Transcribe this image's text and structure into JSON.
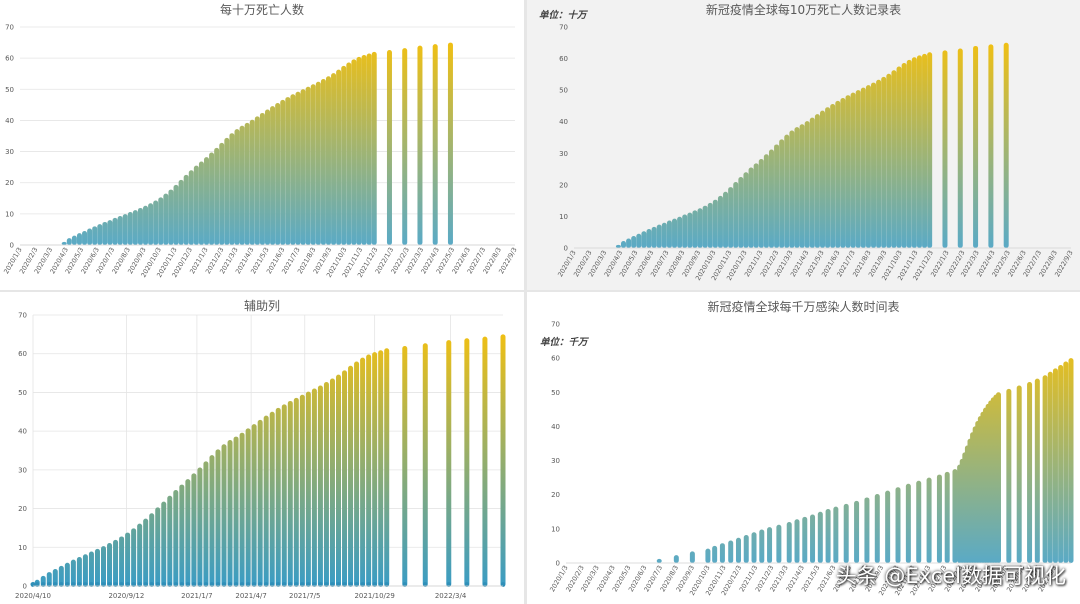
{
  "chart_data": [
    {
      "id": "c1",
      "type": "bar",
      "title": "每十万死亡人数",
      "unit": "",
      "ylim": [
        0,
        70
      ],
      "yticks": [
        0,
        10,
        20,
        30,
        40,
        50,
        60,
        70
      ],
      "gridlines": true,
      "legend": "none",
      "xticklabels": [
        "2020/1/3",
        "2020/2/3",
        "2020/3/3",
        "2020/4/3",
        "2020/5/3",
        "2020/6/3",
        "2020/7/3",
        "2020/8/3",
        "2020/9/3",
        "2020/10/3",
        "2020/11/3",
        "2020/12/3",
        "2021/1/3",
        "2021/2/3",
        "2021/3/3",
        "2021/4/3",
        "2021/5/3",
        "2021/6/3",
        "2021/7/3",
        "2021/8/3",
        "2021/9/3",
        "2021/10/3",
        "2021/11/3",
        "2021/12/3",
        "2022/1/3",
        "2022/2/3",
        "2022/3/3",
        "2022/4/3",
        "2022/5/3",
        "2022/6/3",
        "2022/7/3",
        "2022/8/3",
        "2022/9/3"
      ],
      "x_days": [
        0,
        31,
        60,
        91,
        121,
        152,
        182,
        213,
        244,
        274,
        305,
        335,
        366,
        397,
        425,
        456,
        486,
        517,
        547,
        578,
        609,
        639,
        670,
        700,
        731,
        762,
        790,
        821,
        851,
        882,
        912,
        943,
        974
      ],
      "x_end_days": 974,
      "series_points": [
        [
          0,
          0
        ],
        [
          31,
          0
        ],
        [
          60,
          0
        ],
        [
          87,
          1.0
        ],
        [
          97,
          2.2
        ],
        [
          107,
          3.0
        ],
        [
          117,
          3.8
        ],
        [
          127,
          4.5
        ],
        [
          137,
          5.3
        ],
        [
          147,
          6.0
        ],
        [
          157,
          6.7
        ],
        [
          167,
          7.4
        ],
        [
          177,
          8.0
        ],
        [
          187,
          8.7
        ],
        [
          197,
          9.3
        ],
        [
          207,
          9.9
        ],
        [
          217,
          10.6
        ],
        [
          227,
          11.2
        ],
        [
          237,
          11.9
        ],
        [
          247,
          12.6
        ],
        [
          257,
          13.4
        ],
        [
          267,
          14.3
        ],
        [
          277,
          15.3
        ],
        [
          287,
          16.5
        ],
        [
          297,
          17.8
        ],
        [
          307,
          19.3
        ],
        [
          317,
          20.9
        ],
        [
          327,
          22.5
        ],
        [
          337,
          24.0
        ],
        [
          347,
          25.5
        ],
        [
          357,
          26.8
        ],
        [
          367,
          28.2
        ],
        [
          377,
          29.7
        ],
        [
          387,
          31.2
        ],
        [
          397,
          32.8
        ],
        [
          407,
          34.4
        ],
        [
          417,
          35.9
        ],
        [
          427,
          37.2
        ],
        [
          437,
          38.3
        ],
        [
          447,
          39.2
        ],
        [
          457,
          40.2
        ],
        [
          467,
          41.3
        ],
        [
          477,
          42.4
        ],
        [
          487,
          43.5
        ],
        [
          497,
          44.6
        ],
        [
          507,
          45.6
        ],
        [
          517,
          46.6
        ],
        [
          527,
          47.5
        ],
        [
          537,
          48.4
        ],
        [
          547,
          49.2
        ],
        [
          557,
          50.0
        ],
        [
          567,
          50.8
        ],
        [
          577,
          51.6
        ],
        [
          587,
          52.4
        ],
        [
          597,
          53.3
        ],
        [
          607,
          54.2
        ],
        [
          617,
          55.2
        ],
        [
          627,
          56.3
        ],
        [
          637,
          57.5
        ],
        [
          647,
          58.6
        ],
        [
          657,
          59.6
        ],
        [
          667,
          60.4
        ],
        [
          677,
          61.0
        ],
        [
          687,
          61.5
        ],
        [
          697,
          62.0
        ],
        [
          727,
          62.6
        ],
        [
          757,
          63.2
        ],
        [
          787,
          64.0
        ],
        [
          817,
          64.5
        ],
        [
          847,
          65.0
        ]
      ],
      "colors": {
        "bottom": "#5aaac6",
        "top": "#f2c011"
      }
    },
    {
      "id": "c2",
      "type": "bar",
      "title": "新冠疫情全球每10万死亡人数记录表",
      "unit": "单位：十万",
      "ylim": [
        0,
        70
      ],
      "yticks": [
        0,
        10,
        20,
        30,
        40,
        50,
        60,
        70
      ],
      "gridlines": false,
      "legend": "none",
      "xticklabels": [
        "2020/1/3",
        "2020/2/3",
        "2020/3/3",
        "2020/4/3",
        "2020/5/3",
        "2020/6/3",
        "2020/7/3",
        "2020/8/3",
        "2020/9/3",
        "2020/10/3",
        "2020/11/3",
        "2020/12/3",
        "2021/1/3",
        "2021/2/3",
        "2021/3/3",
        "2021/4/3",
        "2021/5/3",
        "2021/6/3",
        "2021/7/3",
        "2021/8/3",
        "2021/9/3",
        "2021/10/3",
        "2021/11/3",
        "2021/12/3",
        "2022/1/3",
        "2022/2/3",
        "2022/3/3",
        "2022/4/3",
        "2022/5/3",
        "2022/6/3",
        "2022/7/3",
        "2022/8/3",
        "2022/9/3"
      ],
      "x_days": [
        0,
        31,
        60,
        91,
        121,
        152,
        182,
        213,
        244,
        274,
        305,
        335,
        366,
        397,
        425,
        456,
        486,
        517,
        547,
        578,
        609,
        639,
        670,
        700,
        731,
        762,
        790,
        821,
        851,
        882,
        912,
        943,
        974
      ],
      "x_end_days": 974,
      "series_points": [
        [
          0,
          0
        ],
        [
          31,
          0
        ],
        [
          60,
          0
        ],
        [
          87,
          1.0
        ],
        [
          97,
          2.2
        ],
        [
          107,
          3.0
        ],
        [
          117,
          3.8
        ],
        [
          127,
          4.5
        ],
        [
          137,
          5.3
        ],
        [
          147,
          6.0
        ],
        [
          157,
          6.7
        ],
        [
          167,
          7.4
        ],
        [
          177,
          8.0
        ],
        [
          187,
          8.7
        ],
        [
          197,
          9.3
        ],
        [
          207,
          9.9
        ],
        [
          217,
          10.6
        ],
        [
          227,
          11.2
        ],
        [
          237,
          11.9
        ],
        [
          247,
          12.6
        ],
        [
          257,
          13.4
        ],
        [
          267,
          14.3
        ],
        [
          277,
          15.3
        ],
        [
          287,
          16.5
        ],
        [
          297,
          17.8
        ],
        [
          307,
          19.3
        ],
        [
          317,
          20.9
        ],
        [
          327,
          22.5
        ],
        [
          337,
          24.0
        ],
        [
          347,
          25.5
        ],
        [
          357,
          26.8
        ],
        [
          367,
          28.2
        ],
        [
          377,
          29.7
        ],
        [
          387,
          31.2
        ],
        [
          397,
          32.8
        ],
        [
          407,
          34.4
        ],
        [
          417,
          35.9
        ],
        [
          427,
          37.2
        ],
        [
          437,
          38.3
        ],
        [
          447,
          39.2
        ],
        [
          457,
          40.2
        ],
        [
          467,
          41.3
        ],
        [
          477,
          42.4
        ],
        [
          487,
          43.5
        ],
        [
          497,
          44.6
        ],
        [
          507,
          45.6
        ],
        [
          517,
          46.6
        ],
        [
          527,
          47.5
        ],
        [
          537,
          48.4
        ],
        [
          547,
          49.2
        ],
        [
          557,
          50.0
        ],
        [
          567,
          50.8
        ],
        [
          577,
          51.6
        ],
        [
          587,
          52.4
        ],
        [
          597,
          53.3
        ],
        [
          607,
          54.2
        ],
        [
          617,
          55.2
        ],
        [
          627,
          56.3
        ],
        [
          637,
          57.5
        ],
        [
          647,
          58.6
        ],
        [
          657,
          59.6
        ],
        [
          667,
          60.4
        ],
        [
          677,
          61.0
        ],
        [
          687,
          61.5
        ],
        [
          697,
          62.0
        ],
        [
          727,
          62.6
        ],
        [
          757,
          63.2
        ],
        [
          787,
          64.0
        ],
        [
          817,
          64.5
        ],
        [
          847,
          65.0
        ]
      ],
      "colors": {
        "bottom": "#5aaac6",
        "top": "#f2c011"
      }
    },
    {
      "id": "c3",
      "type": "bar",
      "title": "辅助列",
      "unit": "",
      "ylim": [
        0,
        70
      ],
      "yticks": [
        0,
        10,
        20,
        30,
        40,
        50,
        60,
        70
      ],
      "gridlines": true,
      "legend": "none",
      "xticklabels": [
        "2020/4/10",
        "2020/9/12",
        "2021/1/7",
        "2021/4/7",
        "2021/7/5",
        "2021/10/29",
        "2022/3/4"
      ],
      "x_days": [
        0,
        155,
        272,
        362,
        451,
        567,
        693
      ],
      "x_end_days": 780,
      "series_points": [
        [
          0,
          1.0
        ],
        [
          7,
          1.6
        ],
        [
          17,
          2.6
        ],
        [
          27,
          3.6
        ],
        [
          37,
          4.4
        ],
        [
          47,
          5.2
        ],
        [
          57,
          6.0
        ],
        [
          67,
          6.8
        ],
        [
          77,
          7.5
        ],
        [
          87,
          8.2
        ],
        [
          97,
          8.9
        ],
        [
          107,
          9.6
        ],
        [
          117,
          10.3
        ],
        [
          127,
          11.1
        ],
        [
          137,
          11.9
        ],
        [
          147,
          12.8
        ],
        [
          157,
          13.8
        ],
        [
          167,
          14.9
        ],
        [
          177,
          16.1
        ],
        [
          187,
          17.4
        ],
        [
          197,
          18.8
        ],
        [
          207,
          20.3
        ],
        [
          217,
          21.8
        ],
        [
          227,
          23.3
        ],
        [
          237,
          24.8
        ],
        [
          247,
          26.2
        ],
        [
          257,
          27.6
        ],
        [
          267,
          29.1
        ],
        [
          277,
          30.6
        ],
        [
          287,
          32.2
        ],
        [
          297,
          33.8
        ],
        [
          307,
          35.3
        ],
        [
          317,
          36.6
        ],
        [
          327,
          37.7
        ],
        [
          337,
          38.6
        ],
        [
          347,
          39.6
        ],
        [
          357,
          40.7
        ],
        [
          367,
          41.8
        ],
        [
          377,
          42.9
        ],
        [
          387,
          44.0
        ],
        [
          397,
          45.0
        ],
        [
          407,
          46.0
        ],
        [
          417,
          46.9
        ],
        [
          427,
          47.8
        ],
        [
          437,
          48.6
        ],
        [
          447,
          49.4
        ],
        [
          457,
          50.2
        ],
        [
          467,
          51.0
        ],
        [
          477,
          51.8
        ],
        [
          487,
          52.7
        ],
        [
          497,
          53.6
        ],
        [
          507,
          54.6
        ],
        [
          517,
          55.7
        ],
        [
          527,
          56.9
        ],
        [
          537,
          58.0
        ],
        [
          547,
          59.0
        ],
        [
          557,
          59.8
        ],
        [
          567,
          60.4
        ],
        [
          577,
          60.9
        ],
        [
          587,
          61.4
        ],
        [
          617,
          62.0
        ],
        [
          651,
          62.7
        ],
        [
          690,
          63.5
        ],
        [
          720,
          64.0
        ],
        [
          750,
          64.4
        ],
        [
          780,
          65.0
        ]
      ],
      "colors": {
        "bottom": "#3a9cc4",
        "top": "#f2c011"
      }
    },
    {
      "id": "c4",
      "type": "bar",
      "title": "新冠疫情全球每千万感染人数时间表",
      "unit": "单位：千万",
      "ylim": [
        0,
        70
      ],
      "yticks": [
        0,
        10,
        20,
        30,
        40,
        50,
        60,
        70
      ],
      "gridlines": false,
      "legend": "none",
      "xticklabels": [
        "2020/1/3",
        "2020/2/3",
        "2020/3/3",
        "2020/4/3",
        "2020/5/3",
        "2020/6/3",
        "2020/7/3",
        "2020/8/3",
        "2020/9/3",
        "2020/10/3",
        "2020/11/3",
        "2020/12/3",
        "2021/1/3",
        "2021/2/3",
        "2021/3/3",
        "2021/4/3",
        "2021/5/3",
        "2021/6/3",
        "2021/7/3",
        "2021/8/3",
        "2021/9/3",
        "2021/10/3",
        "2021/11/3",
        "2021/12/3",
        "2022/1/3",
        "2022/2/3",
        "2022/3/3",
        "2022/4/3",
        "2022/5/3",
        "2022/6/3",
        "2022/7/3",
        "2022/8/3"
      ],
      "x_days": [
        0,
        31,
        60,
        91,
        121,
        152,
        182,
        213,
        244,
        274,
        305,
        335,
        366,
        397,
        425,
        456,
        486,
        517,
        547,
        578,
        609,
        639,
        670,
        700,
        731,
        762,
        790,
        821,
        851,
        882,
        912,
        943
      ],
      "x_end_days": 975,
      "series_points": [
        [
          0,
          0
        ],
        [
          31,
          0
        ],
        [
          60,
          0
        ],
        [
          91,
          0
        ],
        [
          121,
          0
        ],
        [
          152,
          0
        ],
        [
          180,
          1.2
        ],
        [
          213,
          2.3
        ],
        [
          244,
          3.4
        ],
        [
          274,
          4.2
        ],
        [
          287,
          5.0
        ],
        [
          302,
          5.8
        ],
        [
          318,
          6.6
        ],
        [
          333,
          7.4
        ],
        [
          348,
          8.2
        ],
        [
          363,
          9.0
        ],
        [
          378,
          9.8
        ],
        [
          393,
          10.5
        ],
        [
          411,
          11.2
        ],
        [
          431,
          12.0
        ],
        [
          446,
          12.8
        ],
        [
          461,
          13.5
        ],
        [
          476,
          14.2
        ],
        [
          491,
          15.0
        ],
        [
          506,
          15.8
        ],
        [
          521,
          16.5
        ],
        [
          541,
          17.3
        ],
        [
          561,
          18.2
        ],
        [
          581,
          19.2
        ],
        [
          601,
          20.2
        ],
        [
          621,
          21.2
        ],
        [
          641,
          22.2
        ],
        [
          661,
          23.2
        ],
        [
          681,
          24.1
        ],
        [
          701,
          25.0
        ],
        [
          721,
          25.9
        ],
        [
          736,
          26.7
        ],
        [
          751,
          27.5
        ],
        [
          760,
          28.8
        ],
        [
          765,
          30.5
        ],
        [
          770,
          32.4
        ],
        [
          775,
          34.4
        ],
        [
          780,
          36.4
        ],
        [
          785,
          38.3
        ],
        [
          790,
          40.0
        ],
        [
          795,
          41.6
        ],
        [
          800,
          43.0
        ],
        [
          805,
          44.3
        ],
        [
          810,
          45.5
        ],
        [
          815,
          46.6
        ],
        [
          820,
          47.6
        ],
        [
          825,
          48.5
        ],
        [
          830,
          49.3
        ],
        [
          835,
          50.0
        ],
        [
          855,
          51.0
        ],
        [
          875,
          52.0
        ],
        [
          895,
          53.0
        ],
        [
          910,
          54.0
        ],
        [
          925,
          55.0
        ],
        [
          935,
          56.0
        ],
        [
          945,
          57.0
        ],
        [
          955,
          58.0
        ],
        [
          965,
          59.0
        ],
        [
          975,
          60.0
        ]
      ],
      "colors": {
        "bottom": "#5aaac6",
        "top": "#f2c011"
      }
    }
  ],
  "watermark": "头条 @Excel数据可视化"
}
